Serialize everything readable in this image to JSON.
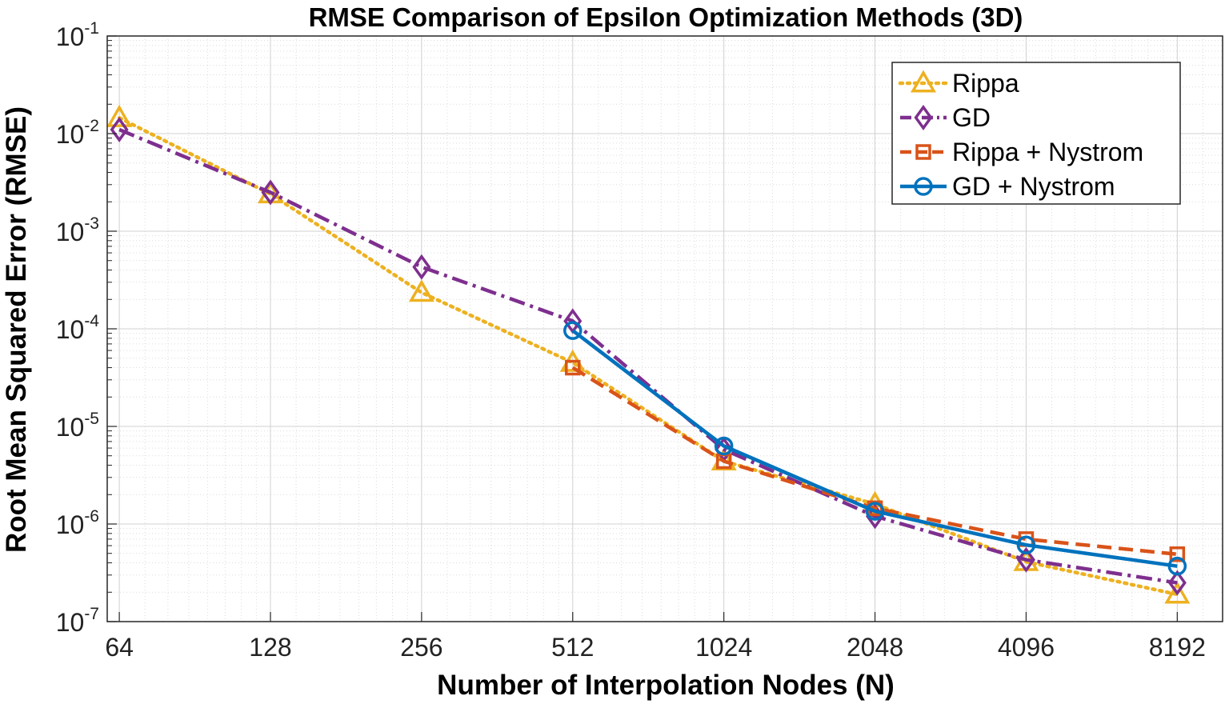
{
  "chart_data": {
    "type": "line",
    "title": "RMSE Comparison of Epsilon Optimization Methods (3D)",
    "xlabel": "Number of Interpolation Nodes (N)",
    "ylabel": "Root Mean Squared Error (RMSE)",
    "x_scale": "log2",
    "y_scale": "log10",
    "x_ticks": [
      64,
      128,
      256,
      512,
      1024,
      2048,
      4096,
      8192
    ],
    "x_tick_labels": [
      "64",
      "128",
      "256",
      "512",
      "1024",
      "2048",
      "4096",
      "8192"
    ],
    "y_ticks": [
      1e-07,
      1e-06,
      1e-05,
      0.0001,
      0.001,
      0.01,
      0.1
    ],
    "y_tick_base": "10",
    "y_tick_exponents": [
      "-7",
      "-6",
      "-5",
      "-4",
      "-3",
      "-2",
      "-1"
    ],
    "ylim": [
      1e-07,
      0.1
    ],
    "grid": true,
    "legend_position": "top-right",
    "series": [
      {
        "name": "Rippa",
        "color": "#EDB120",
        "line_style": "dotted",
        "marker": "triangle",
        "x": [
          64,
          128,
          256,
          512,
          1024,
          2048,
          4096,
          8192
        ],
        "y": [
          0.0145,
          0.0024,
          0.000235,
          4.5e-05,
          4.4e-06,
          1.6e-06,
          4.1e-07,
          1.9e-07
        ]
      },
      {
        "name": "GD",
        "color": "#7E2F8E",
        "line_style": "dashdot",
        "marker": "diamond",
        "x": [
          64,
          128,
          256,
          512,
          1024,
          2048,
          4096,
          8192
        ],
        "y": [
          0.011,
          0.0025,
          0.00043,
          0.00012,
          5.8e-06,
          1.2e-06,
          4.3e-07,
          2.5e-07
        ]
      },
      {
        "name": "Rippa + Nystrom",
        "color": "#D95319",
        "line_style": "dashed",
        "marker": "square",
        "x": [
          512,
          1024,
          2048,
          4096,
          8192
        ],
        "y": [
          4e-05,
          4.4e-06,
          1.45e-06,
          7e-07,
          4.9e-07
        ]
      },
      {
        "name": "GD + Nystrom",
        "color": "#0072BD",
        "line_style": "solid",
        "marker": "circle",
        "x": [
          512,
          1024,
          2048,
          4096,
          8192
        ],
        "y": [
          9.6e-05,
          6.3e-06,
          1.35e-06,
          6.1e-07,
          3.7e-07
        ]
      }
    ]
  }
}
